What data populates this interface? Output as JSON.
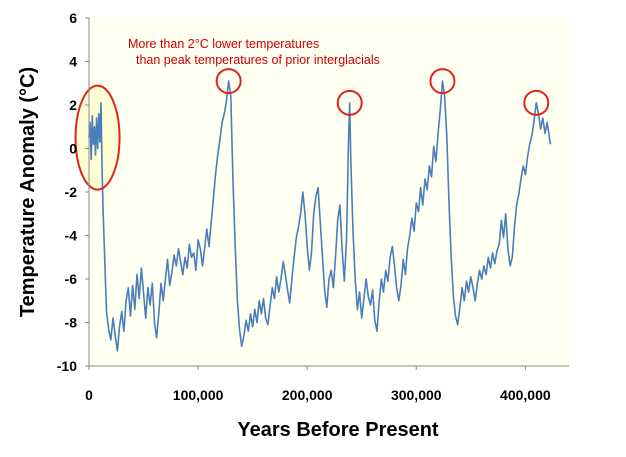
{
  "chart_data": {
    "type": "line",
    "title": "",
    "xlabel": "Years Before Present",
    "ylabel": "Temperature Anomaly (°C)",
    "xlim": [
      0,
      440000
    ],
    "ylim": [
      -10,
      6
    ],
    "x_ticks": [
      0,
      100000,
      200000,
      300000,
      400000
    ],
    "x_tick_labels": [
      "0",
      "100,000",
      "200,000",
      "300,000",
      "400,000"
    ],
    "y_ticks": [
      -10,
      -8,
      -6,
      -4,
      -2,
      0,
      2,
      4,
      6
    ],
    "y_tick_labels": [
      "-10",
      "-8",
      "-6",
      "-4",
      "-2",
      "0",
      "2",
      "4",
      "6"
    ],
    "grid": false,
    "series": [
      {
        "name": "Temperature anomaly",
        "color": "#4a7ebb",
        "points": [
          [
            0,
            0.5
          ],
          [
            1000,
            1.2
          ],
          [
            2000,
            -0.5
          ],
          [
            3000,
            1.5
          ],
          [
            4000,
            0.2
          ],
          [
            5000,
            1.0
          ],
          [
            6000,
            -0.3
          ],
          [
            7000,
            1.4
          ],
          [
            8000,
            0.0
          ],
          [
            9000,
            1.6
          ],
          [
            10000,
            0.3
          ],
          [
            11000,
            2.1
          ],
          [
            12000,
            -1.0
          ],
          [
            13000,
            -3.0
          ],
          [
            14000,
            -4.5
          ],
          [
            15000,
            -6.0
          ],
          [
            16000,
            -7.5
          ],
          [
            18000,
            -8.3
          ],
          [
            20000,
            -8.8
          ],
          [
            22000,
            -7.8
          ],
          [
            24000,
            -8.6
          ],
          [
            26000,
            -9.3
          ],
          [
            28000,
            -8.2
          ],
          [
            30000,
            -7.5
          ],
          [
            32000,
            -8.4
          ],
          [
            34000,
            -7.0
          ],
          [
            36000,
            -6.4
          ],
          [
            38000,
            -7.7
          ],
          [
            40000,
            -6.3
          ],
          [
            42000,
            -7.4
          ],
          [
            44000,
            -5.8
          ],
          [
            46000,
            -6.9
          ],
          [
            48000,
            -5.5
          ],
          [
            50000,
            -6.6
          ],
          [
            52000,
            -7.8
          ],
          [
            54000,
            -6.4
          ],
          [
            56000,
            -7.2
          ],
          [
            58000,
            -6.2
          ],
          [
            60000,
            -8.0
          ],
          [
            62000,
            -8.7
          ],
          [
            64000,
            -7.6
          ],
          [
            66000,
            -6.2
          ],
          [
            68000,
            -7.0
          ],
          [
            70000,
            -6.0
          ],
          [
            72000,
            -5.1
          ],
          [
            74000,
            -6.3
          ],
          [
            76000,
            -5.7
          ],
          [
            78000,
            -4.9
          ],
          [
            80000,
            -5.4
          ],
          [
            82000,
            -4.6
          ],
          [
            84000,
            -5.2
          ],
          [
            86000,
            -5.8
          ],
          [
            88000,
            -5.0
          ],
          [
            90000,
            -5.5
          ],
          [
            92000,
            -4.4
          ],
          [
            94000,
            -5.0
          ],
          [
            96000,
            -4.8
          ],
          [
            98000,
            -5.6
          ],
          [
            100000,
            -4.2
          ],
          [
            102000,
            -4.6
          ],
          [
            104000,
            -5.4
          ],
          [
            106000,
            -4.6
          ],
          [
            108000,
            -3.7
          ],
          [
            110000,
            -4.5
          ],
          [
            112000,
            -3.4
          ],
          [
            114000,
            -2.3
          ],
          [
            116000,
            -1.2
          ],
          [
            118000,
            -0.3
          ],
          [
            120000,
            0.4
          ],
          [
            122000,
            1.2
          ],
          [
            124000,
            1.6
          ],
          [
            126000,
            2.2
          ],
          [
            128000,
            3.1
          ],
          [
            130000,
            2.4
          ],
          [
            132000,
            -1.5
          ],
          [
            134000,
            -4.5
          ],
          [
            136000,
            -7.0
          ],
          [
            138000,
            -8.3
          ],
          [
            140000,
            -9.1
          ],
          [
            142000,
            -8.6
          ],
          [
            144000,
            -7.9
          ],
          [
            146000,
            -8.4
          ],
          [
            148000,
            -7.6
          ],
          [
            150000,
            -8.2
          ],
          [
            152000,
            -7.4
          ],
          [
            154000,
            -8.0
          ],
          [
            156000,
            -7.0
          ],
          [
            158000,
            -7.6
          ],
          [
            160000,
            -6.9
          ],
          [
            162000,
            -7.8
          ],
          [
            164000,
            -8.1
          ],
          [
            166000,
            -7.2
          ],
          [
            168000,
            -6.4
          ],
          [
            170000,
            -6.9
          ],
          [
            172000,
            -5.9
          ],
          [
            174000,
            -6.6
          ],
          [
            176000,
            -6.0
          ],
          [
            178000,
            -5.2
          ],
          [
            180000,
            -5.8
          ],
          [
            182000,
            -6.5
          ],
          [
            184000,
            -7.1
          ],
          [
            186000,
            -6.0
          ],
          [
            188000,
            -5.0
          ],
          [
            190000,
            -4.1
          ],
          [
            192000,
            -3.6
          ],
          [
            194000,
            -3.0
          ],
          [
            196000,
            -2.0
          ],
          [
            198000,
            -3.0
          ],
          [
            200000,
            -4.5
          ],
          [
            202000,
            -5.6
          ],
          [
            204000,
            -4.8
          ],
          [
            206000,
            -3.0
          ],
          [
            208000,
            -2.2
          ],
          [
            210000,
            -1.8
          ],
          [
            212000,
            -3.4
          ],
          [
            214000,
            -5.0
          ],
          [
            216000,
            -6.5
          ],
          [
            218000,
            -7.3
          ],
          [
            220000,
            -6.0
          ],
          [
            222000,
            -5.6
          ],
          [
            224000,
            -6.4
          ],
          [
            226000,
            -5.0
          ],
          [
            228000,
            -3.3
          ],
          [
            230000,
            -2.6
          ],
          [
            232000,
            -4.6
          ],
          [
            234000,
            -6.1
          ],
          [
            236000,
            -4.2
          ],
          [
            237000,
            -2.0
          ],
          [
            238000,
            0.5
          ],
          [
            239000,
            2.1
          ],
          [
            240000,
            -0.5
          ],
          [
            242000,
            -3.8
          ],
          [
            244000,
            -6.0
          ],
          [
            246000,
            -7.4
          ],
          [
            248000,
            -6.6
          ],
          [
            250000,
            -7.8
          ],
          [
            252000,
            -6.9
          ],
          [
            254000,
            -6.0
          ],
          [
            256000,
            -6.8
          ],
          [
            258000,
            -7.2
          ],
          [
            260000,
            -6.5
          ],
          [
            262000,
            -7.9
          ],
          [
            264000,
            -8.4
          ],
          [
            266000,
            -7.0
          ],
          [
            268000,
            -6.0
          ],
          [
            270000,
            -6.6
          ],
          [
            272000,
            -5.6
          ],
          [
            274000,
            -6.1
          ],
          [
            276000,
            -5.0
          ],
          [
            278000,
            -4.5
          ],
          [
            280000,
            -5.4
          ],
          [
            282000,
            -6.4
          ],
          [
            284000,
            -7.0
          ],
          [
            286000,
            -6.3
          ],
          [
            288000,
            -5.1
          ],
          [
            290000,
            -5.8
          ],
          [
            292000,
            -4.6
          ],
          [
            294000,
            -4.0
          ],
          [
            296000,
            -3.2
          ],
          [
            298000,
            -3.8
          ],
          [
            300000,
            -2.5
          ],
          [
            302000,
            -2.9
          ],
          [
            304000,
            -1.8
          ],
          [
            306000,
            -2.6
          ],
          [
            308000,
            -1.4
          ],
          [
            310000,
            -1.9
          ],
          [
            312000,
            -0.8
          ],
          [
            314000,
            -1.3
          ],
          [
            316000,
            0.1
          ],
          [
            318000,
            -0.6
          ],
          [
            320000,
            0.7
          ],
          [
            322000,
            1.8
          ],
          [
            324000,
            3.1
          ],
          [
            326000,
            2.4
          ],
          [
            328000,
            0.6
          ],
          [
            330000,
            -2.5
          ],
          [
            332000,
            -5.0
          ],
          [
            334000,
            -6.8
          ],
          [
            336000,
            -7.7
          ],
          [
            338000,
            -8.1
          ],
          [
            340000,
            -7.3
          ],
          [
            342000,
            -6.4
          ],
          [
            344000,
            -7.0
          ],
          [
            346000,
            -6.1
          ],
          [
            348000,
            -6.6
          ],
          [
            350000,
            -5.9
          ],
          [
            352000,
            -6.4
          ],
          [
            354000,
            -7.0
          ],
          [
            356000,
            -6.2
          ],
          [
            358000,
            -5.6
          ],
          [
            360000,
            -6.0
          ],
          [
            362000,
            -5.4
          ],
          [
            364000,
            -5.8
          ],
          [
            366000,
            -5.0
          ],
          [
            368000,
            -5.5
          ],
          [
            370000,
            -4.8
          ],
          [
            372000,
            -5.3
          ],
          [
            374000,
            -4.7
          ],
          [
            376000,
            -4.4
          ],
          [
            378000,
            -3.3
          ],
          [
            380000,
            -4.1
          ],
          [
            382000,
            -3.0
          ],
          [
            384000,
            -4.6
          ],
          [
            386000,
            -5.4
          ],
          [
            388000,
            -5.0
          ],
          [
            390000,
            -3.6
          ],
          [
            392000,
            -2.6
          ],
          [
            394000,
            -2.1
          ],
          [
            396000,
            -1.4
          ],
          [
            398000,
            -0.8
          ],
          [
            400000,
            -1.2
          ],
          [
            402000,
            -0.4
          ],
          [
            404000,
            0.2
          ],
          [
            406000,
            0.6
          ],
          [
            408000,
            1.3
          ],
          [
            410000,
            2.1
          ],
          [
            412000,
            1.6
          ],
          [
            414000,
            0.9
          ],
          [
            416000,
            1.4
          ],
          [
            418000,
            0.7
          ],
          [
            420000,
            1.2
          ],
          [
            422000,
            0.5
          ],
          [
            423000,
            0.2
          ]
        ]
      }
    ],
    "highlights": [
      {
        "name": "holocene",
        "shape": "ellipse",
        "x": 6000,
        "y": 0.5
      },
      {
        "name": "peak-1",
        "shape": "circle",
        "x": 128000,
        "y": 3.1
      },
      {
        "name": "peak-2",
        "shape": "circle",
        "x": 239000,
        "y": 2.1
      },
      {
        "name": "peak-3",
        "shape": "circle",
        "x": 324000,
        "y": 3.1
      },
      {
        "name": "peak-4",
        "shape": "circle",
        "x": 410000,
        "y": 2.1
      }
    ],
    "annotation": {
      "line1": "More than 2°C lower temperatures",
      "line2": "than peak temperatures of prior interglacials",
      "color": "#cc0000",
      "highlight_color": "#e0241b",
      "highlight_fill": "#ffffd5"
    }
  }
}
